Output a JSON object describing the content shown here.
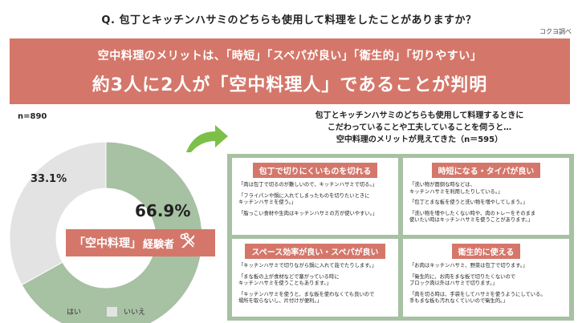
{
  "question": "Q.  包丁とキッチンハサミのどちらも使用して料理をしたことがありますか？",
  "source": "コクヨ調べ",
  "banner": {
    "line1": "空中料理のメリットは、「時短」「スペパが良い」「衛生的」「切りやすい」",
    "line2": "約3人に2人が「空中料理人」であることが判明"
  },
  "n_label": "n=890",
  "donut": {
    "yes_label": "66.9%",
    "no_label": "33.1%"
  },
  "experience_badge": {
    "part1": "「空中料理」",
    "part2": "経験者",
    "icon": "knife-scissors-icon"
  },
  "chart_data": {
    "type": "pie",
    "categories": [
      "はい",
      "いいえ"
    ],
    "values": [
      66.9,
      33.1
    ],
    "colors": [
      "#a7c1a3",
      "#e3e3e3"
    ],
    "donut": true,
    "n": 890,
    "legend_position": "bottom-left"
  },
  "legend": {
    "yes": "はい",
    "no": "いいえ"
  },
  "right_header": {
    "line1": "包丁とキッチンハサミのどちらも使用して料理するときに",
    "line2": "こだわっていることや工夫していることを伺うと…",
    "line3": "空中料理のメリットが見えてきた（n＝595）"
  },
  "cells": [
    {
      "title": "包丁で切りにくいものを切れる",
      "items": [
        "「肉は包丁で切るのが難しいので、キッチンハサミで切る。」",
        "「フライパンや鍋に入れてしまったものを切りたいときに\nキッチンハサミを使う。」",
        "「脂っこい食材や生肉はキッチンハサミの方が使いやすい。」"
      ]
    },
    {
      "title": "時短になる・タイパが良い",
      "items": [
        "「洗い物が面倒な時などは、\nキッチンハサミを利用したりしている。」",
        "「包丁とまな板を使うと洗い物を増やしてしまう。」",
        "「洗い物を増やしたくない時や、肉のトレーをそのまま\n使いたい時はキッチンハサミを使うことがあります。」"
      ]
    },
    {
      "title": "スペース効率が良い・スペパが良い",
      "items": [
        "「キッチンハサミで切りながら鍋に入れて茹でたりします。」",
        "「まな板の上が食材などで塞がっている時に\nキッチンハサミを使うこともあります。」",
        "「キッチンハサミを使うと、まな板を使わなくても良いので\n場所を取らないし、片付けが便利。」"
      ]
    },
    {
      "title": "衛生的に使える",
      "items": [
        "「お肉はキッチンハサミ、野菜は包丁で切ります。」",
        "「衛生的に、お肉をまな板で切りたくないので\nブロック肉以外はハサミで切ります。」",
        "「肉を切る時は、手袋をしてハサミを使うようにしている。\n手もまな板も汚れなくていいので衛生的。」"
      ]
    }
  ]
}
